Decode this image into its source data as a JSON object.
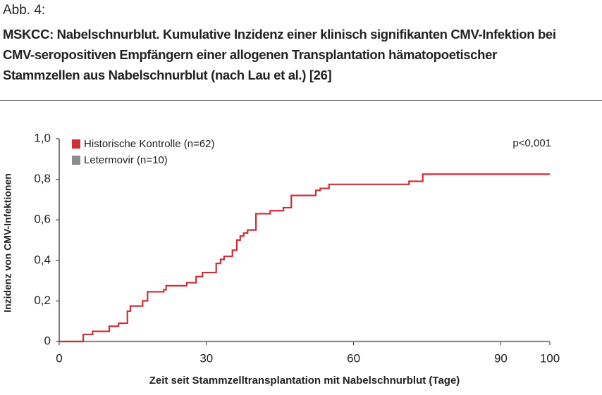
{
  "figure_label": "Abb. 4:",
  "chart_data": {
    "type": "line",
    "drawstyle": "steps-post",
    "title": "MSKCC: Nabelschnurblut. Kumulative Inzidenz einer klinisch signifikanten CMV-Infektion bei CMV-seropositiven Empfängern einer allogenen Transplantation hämatopoetischer Stammzellen aus Nabelschnurblut (nach Lau et al.) [26]",
    "xlabel": "Zeit seit Stammzelltransplantation mit Nabelschnurblut (Tage)",
    "ylabel": "Inzidenz von CMV-Infektionen",
    "annotation": "p<0,001",
    "xlim": [
      0,
      100
    ],
    "xticks": [
      0,
      30,
      60,
      90,
      100
    ],
    "ylim": [
      0,
      1
    ],
    "yticks": [
      0,
      {
        "value": 0.2,
        "label": "0,2"
      },
      {
        "value": 0.4,
        "label": "0,4"
      },
      {
        "value": 0.6,
        "label": "0,6"
      },
      {
        "value": 0.8,
        "label": "0,8"
      },
      {
        "value": 1,
        "label": "1,0"
      }
    ],
    "legend": "upper left",
    "series": [
      {
        "name": "Historische Kontrolle (n=62)",
        "color": "#d12d35",
        "x": [
          0,
          4.9,
          6.8,
          10.2,
          12.1,
          13.9,
          14.5,
          17,
          18,
          21.3,
          21.8,
          26,
          27.9,
          29.2,
          32,
          32.9,
          33.6,
          35.3,
          36.2,
          36.9,
          37.6,
          38.4,
          40.1,
          43,
          45.7,
          47.3,
          52.3,
          53.2,
          55,
          71.3,
          74.1,
          100
        ],
        "values": [
          0,
          0.035,
          0.05,
          0.075,
          0.09,
          0.15,
          0.175,
          0.2,
          0.245,
          0.255,
          0.275,
          0.29,
          0.32,
          0.34,
          0.385,
          0.405,
          0.42,
          0.45,
          0.5,
          0.52,
          0.535,
          0.55,
          0.63,
          0.645,
          0.66,
          0.72,
          0.745,
          0.755,
          0.775,
          0.79,
          0.825,
          0.825
        ]
      },
      {
        "name": "Letermovir (n=10)",
        "color": "#8c8c8c",
        "x": [
          0,
          100
        ],
        "values": [
          0,
          0
        ]
      }
    ]
  }
}
